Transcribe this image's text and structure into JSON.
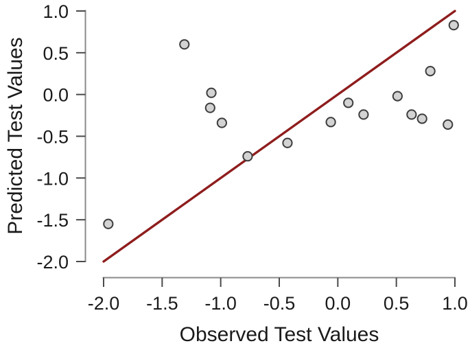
{
  "chart_data": {
    "type": "scatter",
    "title": "",
    "xlabel": "Observed Test Values",
    "ylabel": "Predicted Test Values",
    "xlim": [
      -2.0,
      1.0
    ],
    "ylim": [
      -2.0,
      1.0
    ],
    "x_tick_labels": [
      "-2.0",
      "-1.5",
      "-1.0",
      "-0.5",
      "0.0",
      "0.5",
      "1.0"
    ],
    "y_tick_labels": [
      "-2.0",
      "-1.5",
      "-1.0",
      "-0.5",
      "0.0",
      "0.5",
      "1.0"
    ],
    "grid": false,
    "legend": false,
    "series": [
      {
        "name": "test-set-predictions",
        "marker": "circle",
        "points": [
          {
            "x": -1.96,
            "y": -1.55
          },
          {
            "x": -1.31,
            "y": 0.6
          },
          {
            "x": -1.08,
            "y": 0.02
          },
          {
            "x": -1.09,
            "y": -0.16
          },
          {
            "x": -0.99,
            "y": -0.34
          },
          {
            "x": -0.77,
            "y": -0.74
          },
          {
            "x": -0.43,
            "y": -0.58
          },
          {
            "x": -0.06,
            "y": -0.33
          },
          {
            "x": 0.09,
            "y": -0.1
          },
          {
            "x": 0.22,
            "y": -0.24
          },
          {
            "x": 0.51,
            "y": -0.02
          },
          {
            "x": 0.63,
            "y": -0.24
          },
          {
            "x": 0.72,
            "y": -0.29
          },
          {
            "x": 0.79,
            "y": 0.28
          },
          {
            "x": 0.94,
            "y": -0.36
          },
          {
            "x": 0.99,
            "y": 0.83
          }
        ]
      }
    ],
    "reference_line": {
      "name": "identity-line",
      "from": {
        "x": -2.0,
        "y": -2.0
      },
      "to": {
        "x": 1.0,
        "y": 1.0
      }
    },
    "colors": {
      "reference_line": "#8F1D1D",
      "point_fill": "#D3D3D3",
      "point_stroke": "#3D3D3D",
      "axis_line": "#8A8A8A",
      "tick_mark": "#4A4A4A",
      "text": "#1A1A1A",
      "background": "#FFFFFF"
    }
  }
}
